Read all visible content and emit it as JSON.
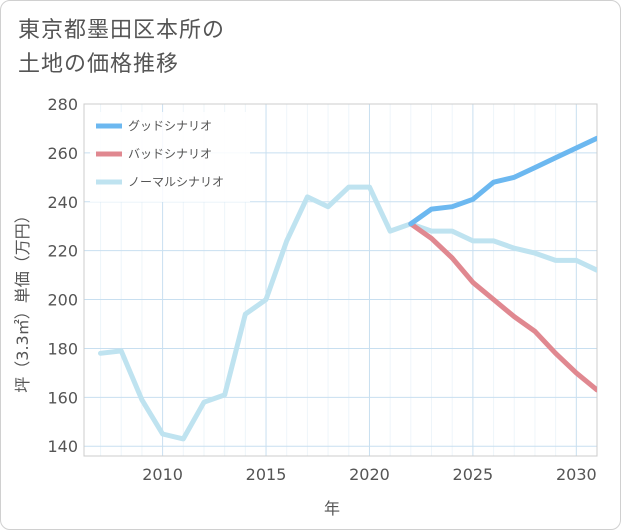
{
  "title_line1": "東京都墨田区本所の",
  "title_line2": "土地の価格推移",
  "chart_data": {
    "type": "line",
    "xlabel": "年",
    "ylabel": "坪（3.3㎡）単価（万円）",
    "xlim": [
      2006.2,
      2031
    ],
    "ylim": [
      136,
      280
    ],
    "xticks": [
      2010,
      2015,
      2020,
      2025,
      2030
    ],
    "yticks": [
      140,
      160,
      180,
      200,
      220,
      240,
      260,
      280
    ],
    "grid": true,
    "legend_position": "top-left",
    "series": [
      {
        "name": "ノーマルシナリオ",
        "color": "#bfe3f0",
        "x": [
          2007,
          2008,
          2009,
          2010,
          2011,
          2012,
          2013,
          2014,
          2015,
          2016,
          2017,
          2018,
          2019,
          2020,
          2021,
          2022,
          2023,
          2024,
          2025,
          2026,
          2027,
          2028,
          2029,
          2030,
          2031
        ],
        "y": [
          178,
          179,
          159,
          145,
          143,
          158,
          161,
          194,
          200,
          224,
          242,
          238,
          246,
          246,
          228,
          231,
          228,
          228,
          224,
          224,
          221,
          219,
          216,
          216,
          212
        ]
      },
      {
        "name": "バッドシナリオ",
        "color": "#e08890",
        "x": [
          2022,
          2023,
          2024,
          2025,
          2026,
          2027,
          2028,
          2029,
          2030,
          2031
        ],
        "y": [
          231,
          225,
          217,
          207,
          200,
          193,
          187,
          178,
          170,
          163
        ]
      },
      {
        "name": "グッドシナリオ",
        "color": "#6cb8f0",
        "x": [
          2022,
          2023,
          2024,
          2025,
          2026,
          2027,
          2028,
          2029,
          2030,
          2031
        ],
        "y": [
          231,
          237,
          238,
          241,
          248,
          250,
          254,
          258,
          262,
          266
        ]
      }
    ],
    "legend_order": [
      "グッドシナリオ",
      "バッドシナリオ",
      "ノーマルシナリオ"
    ]
  }
}
